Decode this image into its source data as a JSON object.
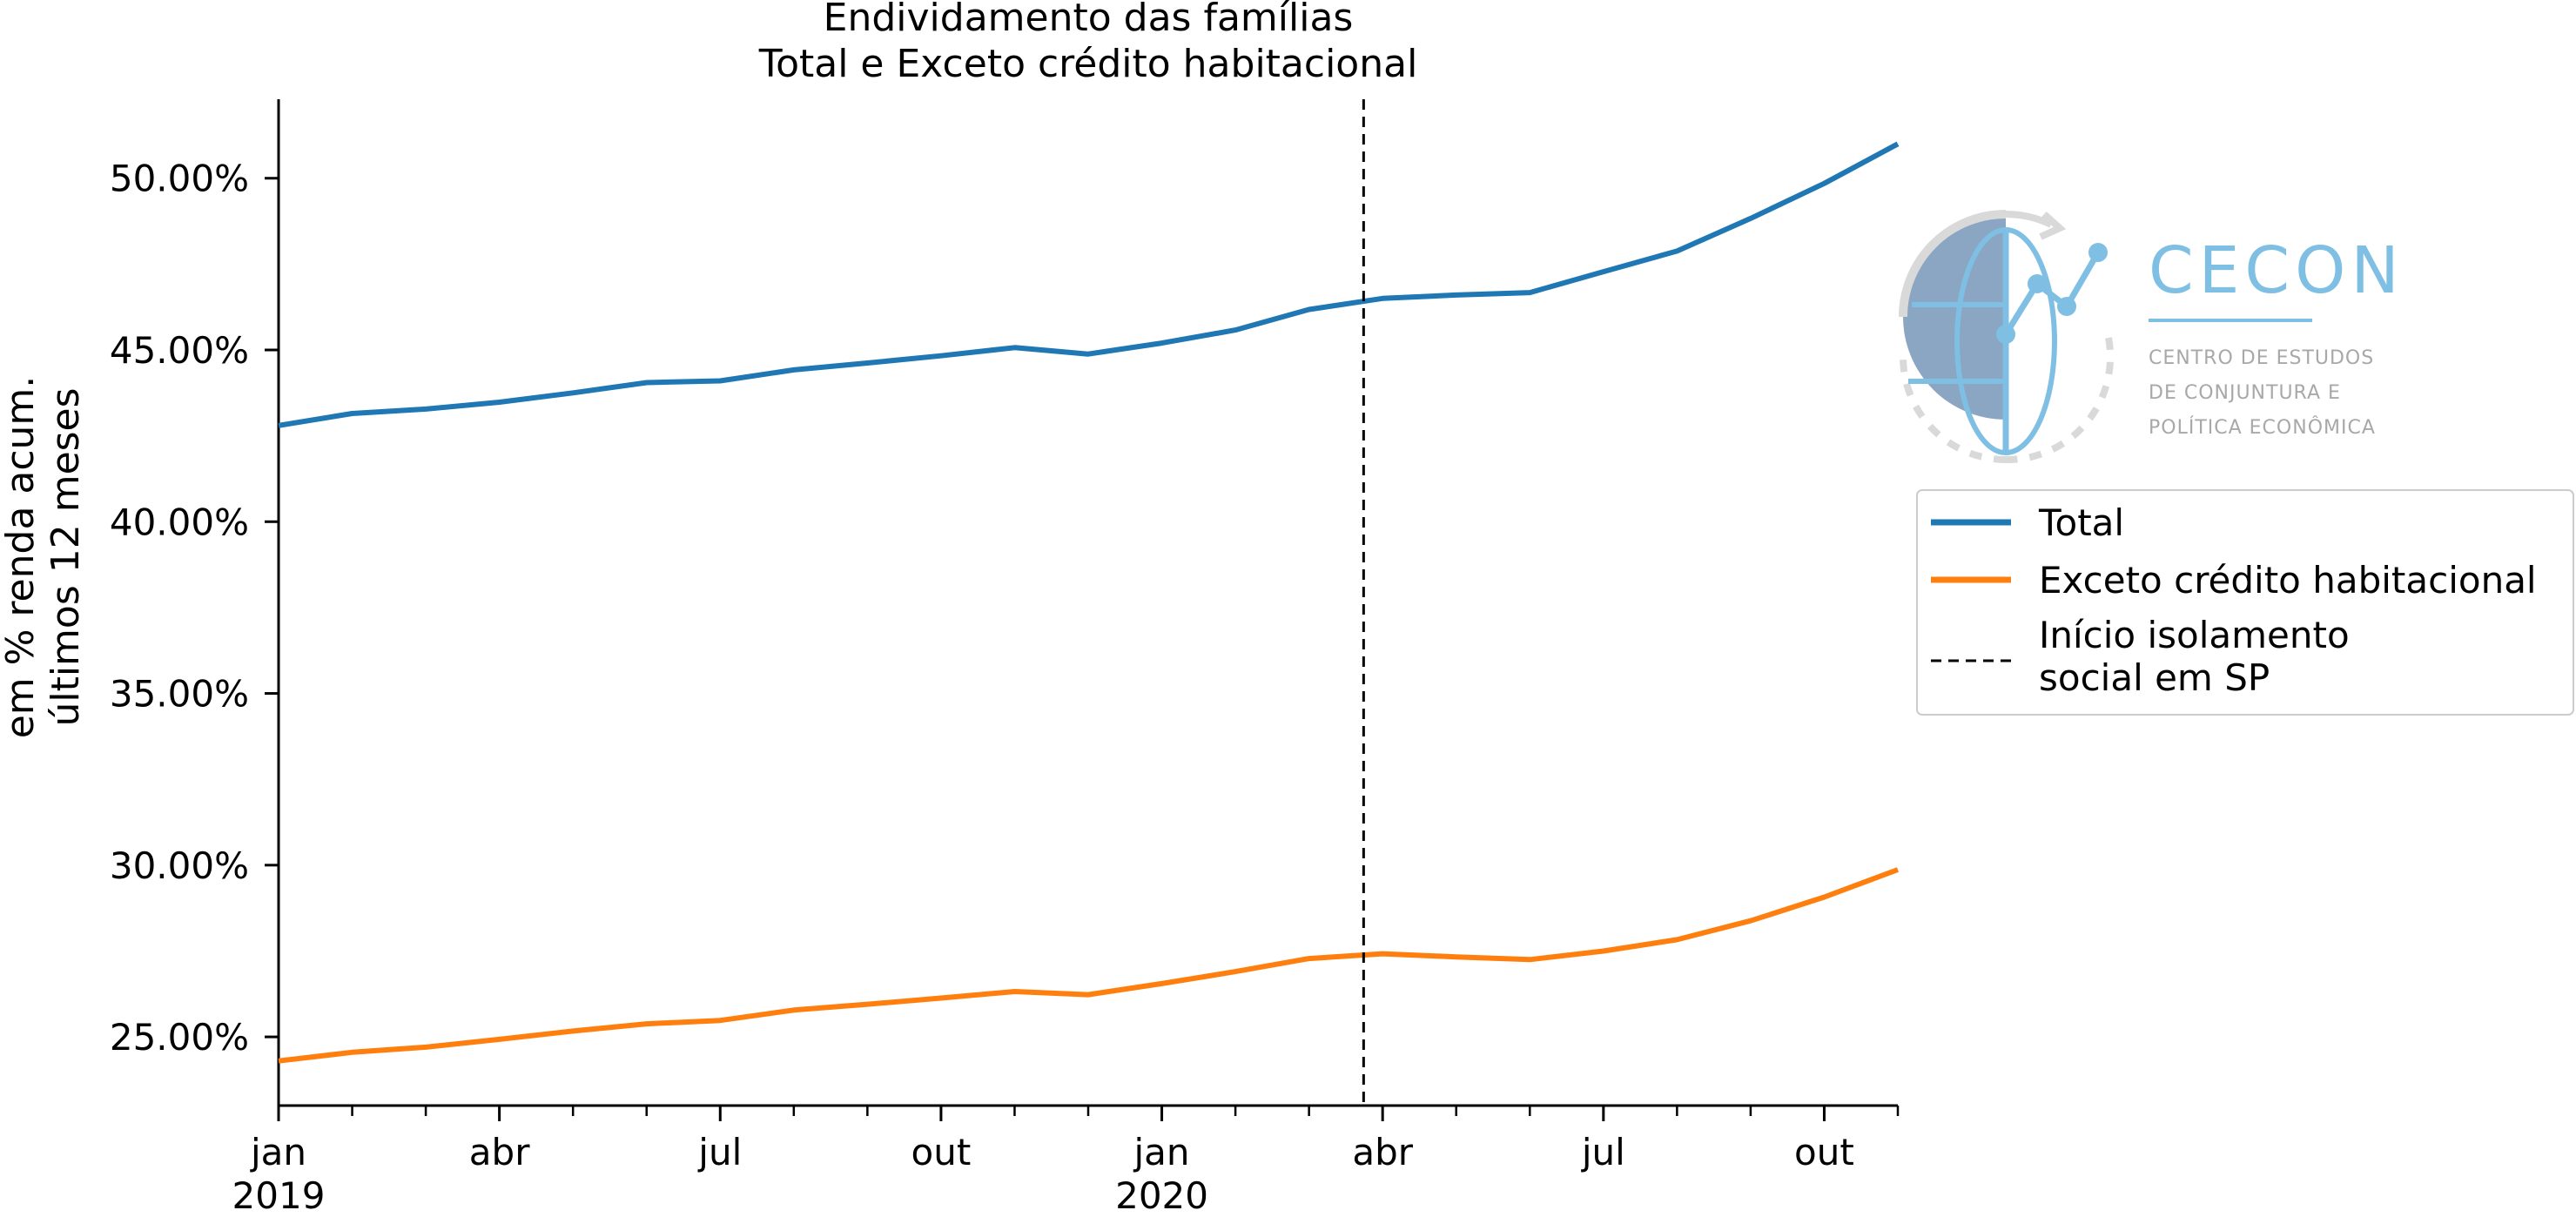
{
  "chart_data": {
    "type": "line",
    "title": "Endividamento das famílias",
    "subtitle": "Total e Exceto crédito habitacional",
    "ylabel_line1": "em % renda acum.",
    "ylabel_line2": "últimos 12 meses",
    "xlabel": "",
    "x_start": "2019-01",
    "x_end": "2020-11",
    "ylim": [
      23.0,
      52.3
    ],
    "y_ticks": [
      25,
      30,
      35,
      40,
      45,
      50
    ],
    "y_tick_labels": [
      "25.00%",
      "30.00%",
      "35.00%",
      "40.00%",
      "45.00%",
      "50.00%"
    ],
    "x_tick_labels": [
      {
        "month": "2019-01",
        "label": "jan",
        "year": "2019"
      },
      {
        "month": "2019-04",
        "label": "abr",
        "year": ""
      },
      {
        "month": "2019-07",
        "label": "jul",
        "year": ""
      },
      {
        "month": "2019-10",
        "label": "out",
        "year": ""
      },
      {
        "month": "2020-01",
        "label": "jan",
        "year": "2020"
      },
      {
        "month": "2020-04",
        "label": "abr",
        "year": ""
      },
      {
        "month": "2020-07",
        "label": "jul",
        "year": ""
      },
      {
        "month": "2020-10",
        "label": "out",
        "year": ""
      }
    ],
    "x": [
      "2019-01",
      "2019-02",
      "2019-03",
      "2019-04",
      "2019-05",
      "2019-06",
      "2019-07",
      "2019-08",
      "2019-09",
      "2019-10",
      "2019-11",
      "2019-12",
      "2020-01",
      "2020-02",
      "2020-03",
      "2020-04",
      "2020-05",
      "2020-06",
      "2020-07",
      "2020-08",
      "2020-09",
      "2020-10",
      "2020-11"
    ],
    "series": [
      {
        "name": "Total",
        "color": "#1f77b4",
        "values": [
          42.8,
          43.15,
          43.28,
          43.48,
          43.75,
          44.05,
          44.1,
          44.42,
          44.62,
          44.83,
          45.07,
          44.88,
          45.2,
          45.58,
          46.18,
          46.5,
          46.6,
          46.67,
          47.28,
          47.88,
          48.83,
          49.85,
          51.0
        ]
      },
      {
        "name": "Exceto crédito habitacional",
        "color": "#ff7f0e",
        "values": [
          24.3,
          24.55,
          24.7,
          24.93,
          25.17,
          25.38,
          25.48,
          25.78,
          25.95,
          26.13,
          26.32,
          26.23,
          26.55,
          26.9,
          27.28,
          27.42,
          27.33,
          27.25,
          27.5,
          27.83,
          28.38,
          29.07,
          29.87
        ]
      }
    ],
    "vline": {
      "x": "2020-03-24",
      "label_line1": "Início isolamento",
      "label_line2": "social em SP",
      "style": "dashed",
      "color": "#000000"
    },
    "legend": {
      "placement": "right",
      "items": [
        "Total",
        "Exceto crédito habitacional",
        "Início isolamento social em SP"
      ]
    },
    "grid": false
  },
  "logo": {
    "name": "CECON",
    "line1": "CENTRO DE ESTUDOS",
    "line2": "DE CONJUNTURA E",
    "line3": "POLÍTICA ECONÔMICA",
    "color": "#7fbfe3",
    "icon": "globe-chart-icon"
  }
}
